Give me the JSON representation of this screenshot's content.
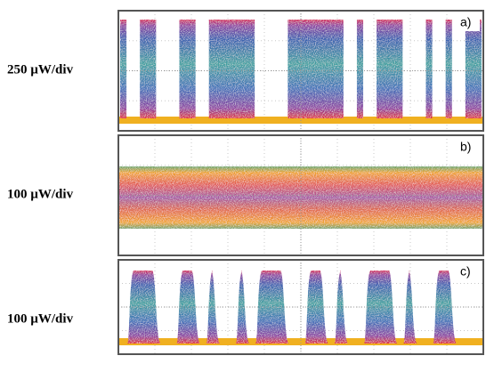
{
  "panels": [
    {
      "label": "a)",
      "scale": "250 µW/div"
    },
    {
      "label": "b)",
      "scale": "100 µW/div"
    },
    {
      "label": "c)",
      "scale": "100 µW/div"
    }
  ]
}
